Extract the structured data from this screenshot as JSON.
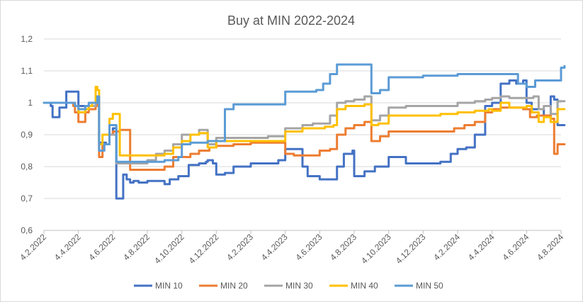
{
  "chart_data": {
    "type": "line",
    "title": "Buy at MIN 2022-2024",
    "xlabel": "",
    "ylabel": "",
    "ylim": [
      0.6,
      1.2
    ],
    "yticks": [
      "0,6",
      "0,7",
      "0,8",
      "0,9",
      "1",
      "1,1",
      "1,2"
    ],
    "ytick_values": [
      0.6,
      0.7,
      0.8,
      0.9,
      1.0,
      1.1,
      1.2
    ],
    "xlim": [
      0,
      30
    ],
    "xticks": [
      "4.2.2022",
      "4.4.2022",
      "4.6.2022",
      "4.8.2022",
      "4.10.2022",
      "4.12.2022",
      "4.2.2023",
      "4.4.2023",
      "4.6.2023",
      "4.8.2023",
      "4.10.2023",
      "4.12.2023",
      "4.2.2024",
      "4.4.2024",
      "4.6.2024",
      "4.8.2024"
    ],
    "xtick_values": [
      0,
      2,
      4,
      6,
      8,
      10,
      12,
      14,
      16,
      18,
      20,
      22,
      24,
      26,
      28,
      30
    ],
    "grid": true,
    "legend": "bottom",
    "series": [
      {
        "name": "MIN 10",
        "color": "#4472c4",
        "x": [
          0,
          0.4,
          0.5,
          0.9,
          1.3,
          1.8,
          2.0,
          2.4,
          2.6,
          3.0,
          3.2,
          3.6,
          3.8,
          4.0,
          4.2,
          4.6,
          4.8,
          5.0,
          5.2,
          5.5,
          6.0,
          7.0,
          7.3,
          7.8,
          8.4,
          9.0,
          9.4,
          9.5,
          9.8,
          10.0,
          10.5,
          11.0,
          12.0,
          13.0,
          13.6,
          14.0,
          15.0,
          15.3,
          16.0,
          17.0,
          17.4,
          17.9,
          18.0,
          18.6,
          19.2,
          20.0,
          21.0,
          22.0,
          23.0,
          23.6,
          24.0,
          24.5,
          25.0,
          25.6,
          26.0,
          26.5,
          27.0,
          27.4,
          27.8,
          28.0,
          28.3,
          29.0,
          29.4,
          29.6,
          29.8,
          30.2
        ],
        "values": [
          1.0,
          0.99,
          0.955,
          0.985,
          1.035,
          1.035,
          0.99,
          0.98,
          0.99,
          1.02,
          0.875,
          0.87,
          0.9,
          0.92,
          0.7,
          0.775,
          0.76,
          0.75,
          0.755,
          0.75,
          0.755,
          0.745,
          0.76,
          0.77,
          0.805,
          0.81,
          0.815,
          0.82,
          0.81,
          0.775,
          0.78,
          0.8,
          0.81,
          0.81,
          0.82,
          0.855,
          0.8,
          0.77,
          0.76,
          0.8,
          0.84,
          0.85,
          0.77,
          0.785,
          0.8,
          0.83,
          0.81,
          0.81,
          0.815,
          0.84,
          0.855,
          0.86,
          0.9,
          0.99,
          1.0,
          1.06,
          1.07,
          1.06,
          1.07,
          1.0,
          0.98,
          0.96,
          1.02,
          1.01,
          0.93,
          0.93
        ]
      },
      {
        "name": "MIN 20",
        "color": "#ed7d31",
        "x": [
          0,
          1.0,
          1.7,
          1.8,
          2.0,
          2.4,
          2.6,
          3.0,
          3.1,
          3.2,
          3.4,
          3.8,
          4.0,
          4.4,
          5.0,
          5.5,
          6.0,
          6.5,
          7.0,
          7.5,
          8.0,
          8.5,
          9.0,
          9.6,
          10.0,
          11.0,
          12.0,
          13.0,
          13.6,
          14.0,
          14.5,
          15.0,
          16.0,
          16.6,
          17.0,
          17.5,
          18.0,
          18.6,
          19.0,
          19.5,
          20.0,
          21.0,
          22.0,
          23.0,
          23.8,
          24.4,
          25.0,
          25.6,
          26.0,
          26.5,
          27.0,
          27.8,
          28.2,
          28.6,
          29.0,
          29.4,
          29.6,
          29.8,
          30.2
        ],
        "values": [
          1.0,
          1.0,
          0.99,
          0.97,
          0.94,
          0.97,
          0.98,
          1.0,
          0.99,
          0.83,
          0.87,
          0.9,
          0.91,
          0.915,
          0.79,
          0.79,
          0.79,
          0.79,
          0.8,
          0.83,
          0.83,
          0.84,
          0.85,
          0.86,
          0.865,
          0.87,
          0.875,
          0.875,
          0.875,
          0.84,
          0.835,
          0.835,
          0.85,
          0.855,
          0.9,
          0.92,
          0.93,
          0.94,
          0.88,
          0.895,
          0.91,
          0.91,
          0.91,
          0.91,
          0.92,
          0.93,
          0.94,
          0.97,
          0.98,
          0.985,
          0.985,
          0.98,
          0.955,
          0.96,
          0.96,
          0.95,
          0.84,
          0.87,
          0.87
        ]
      },
      {
        "name": "MIN 30",
        "color": "#a5a5a5",
        "x": [
          0,
          1.0,
          1.8,
          2.0,
          2.4,
          2.6,
          3.0,
          3.2,
          3.5,
          3.8,
          4.2,
          5.0,
          6.0,
          6.5,
          7.0,
          7.5,
          8.0,
          9.0,
          9.5,
          10.0,
          11.0,
          12.0,
          13.0,
          13.6,
          14.0,
          15.0,
          15.6,
          16.0,
          16.6,
          17.0,
          17.5,
          18.0,
          18.6,
          19.0,
          19.5,
          20.0,
          21.0,
          22.0,
          23.0,
          24.0,
          25.0,
          25.6,
          26.0,
          26.5,
          27.0,
          28.0,
          28.4,
          28.7,
          29.0,
          29.4,
          29.8,
          30.2
        ],
        "values": [
          1.0,
          1.0,
          0.99,
          0.97,
          0.98,
          0.99,
          1.0,
          0.85,
          0.87,
          0.9,
          0.81,
          0.81,
          0.82,
          0.84,
          0.85,
          0.87,
          0.9,
          0.915,
          0.87,
          0.89,
          0.89,
          0.89,
          0.895,
          0.895,
          0.92,
          0.93,
          0.935,
          0.935,
          0.96,
          1.0,
          1.005,
          1.01,
          1.02,
          0.945,
          0.96,
          0.985,
          0.99,
          0.99,
          0.99,
          1.0,
          1.005,
          1.01,
          1.015,
          1.02,
          1.015,
          1.015,
          1.02,
          0.98,
          0.99,
          0.965,
          1.005,
          1.005
        ]
      },
      {
        "name": "MIN 40",
        "color": "#ffc000",
        "x": [
          0,
          1.0,
          1.8,
          2.0,
          2.4,
          2.6,
          2.8,
          3.0,
          3.1,
          3.2,
          3.4,
          3.8,
          4.0,
          4.4,
          5.0,
          6.0,
          7.0,
          7.5,
          8.0,
          8.5,
          9.0,
          9.5,
          10.0,
          11.0,
          12.0,
          13.0,
          13.6,
          14.0,
          15.0,
          15.8,
          16.3,
          16.8,
          17.0,
          17.5,
          18.0,
          18.6,
          19.0,
          19.4,
          20.0,
          21.0,
          22.0,
          23.0,
          24.0,
          25.0,
          25.8,
          26.0,
          26.5,
          27.0,
          28.0,
          28.3,
          28.7,
          29.0,
          29.4,
          29.8,
          30.2
        ],
        "values": [
          1.0,
          1.0,
          0.99,
          0.97,
          0.98,
          0.99,
          1.0,
          1.05,
          1.04,
          0.87,
          0.9,
          0.95,
          0.965,
          0.835,
          0.835,
          0.835,
          0.84,
          0.86,
          0.88,
          0.9,
          0.905,
          0.86,
          0.88,
          0.88,
          0.88,
          0.88,
          0.88,
          0.91,
          0.92,
          0.92,
          0.925,
          0.93,
          0.98,
          0.99,
          0.99,
          0.995,
          0.93,
          0.935,
          0.96,
          0.96,
          0.96,
          0.965,
          0.97,
          0.975,
          0.98,
          0.975,
          1.0,
          0.985,
          0.99,
          0.97,
          0.94,
          0.955,
          0.94,
          0.98,
          0.98
        ]
      },
      {
        "name": "MIN 50",
        "color": "#5b9bd5",
        "x": [
          0,
          1.0,
          1.8,
          2.0,
          2.4,
          2.6,
          3.0,
          3.1,
          3.2,
          3.5,
          3.8,
          4.2,
          5.0,
          6.0,
          7.0,
          7.8,
          8.0,
          8.5,
          9.0,
          9.5,
          10.0,
          10.5,
          11.0,
          12.0,
          13.0,
          13.6,
          14.0,
          15.0,
          15.8,
          16.2,
          16.6,
          17.0,
          17.6,
          18.0,
          18.4,
          19.0,
          19.5,
          20.0,
          21.0,
          22.0,
          23.0,
          24.0,
          25.0,
          26.0,
          27.0,
          27.5,
          28.0,
          28.5,
          29.0,
          29.5,
          30.0,
          30.2
        ],
        "values": [
          1.0,
          1.0,
          0.99,
          0.98,
          0.99,
          1.0,
          1.0,
          1.02,
          0.85,
          0.87,
          0.93,
          0.815,
          0.815,
          0.815,
          0.82,
          0.83,
          0.87,
          0.875,
          0.875,
          0.88,
          0.88,
          0.98,
          0.995,
          0.995,
          0.995,
          0.995,
          1.035,
          1.035,
          1.04,
          1.06,
          1.09,
          1.12,
          1.12,
          1.12,
          1.12,
          1.03,
          1.04,
          1.08,
          1.08,
          1.085,
          1.085,
          1.09,
          1.09,
          1.09,
          1.09,
          1.06,
          1.05,
          1.07,
          1.07,
          1.07,
          1.11,
          1.115
        ]
      }
    ]
  }
}
